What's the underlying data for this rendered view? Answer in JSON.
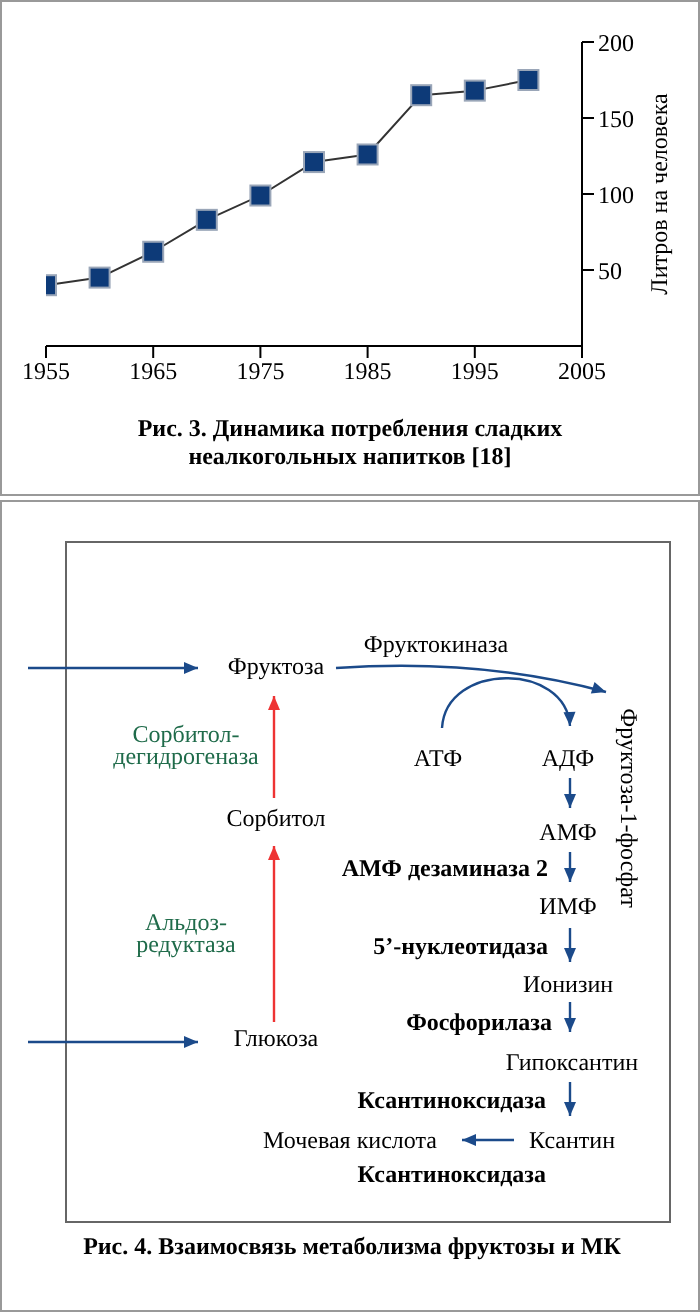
{
  "chart_data": [
    {
      "type": "line",
      "title": "Рис. 3. Динамика потребления сладких неалкогольных напитков [18]",
      "ylabel": "Литров на человека",
      "x": [
        1955,
        1960,
        1965,
        1970,
        1975,
        1980,
        1985,
        1990,
        1995,
        2000
      ],
      "series": [
        {
          "color": "#0d3a78",
          "values": [
            40,
            45,
            62,
            83,
            99,
            121,
            126,
            165,
            168,
            175
          ]
        }
      ],
      "xlim": [
        1955,
        2005
      ],
      "xticks": [
        1955,
        1965,
        1975,
        1985,
        1995,
        2005
      ],
      "ylim": [
        0,
        200
      ],
      "yticks": [
        50,
        100,
        150,
        200
      ],
      "marker": "square",
      "line_style": "solid"
    },
    {
      "type": "other",
      "title": "Рис. 4. Взаимосвязь метаболизма фруктозы и МК",
      "annotations": [
        "Фруктоза",
        "Фруктокиназа",
        "Фруктоза-1-фосфат",
        "Сорбитол-",
        "дегидрогеназа",
        "АТФ",
        "АДФ",
        "Сорбитол",
        "АМФ",
        "АМФ дезаминаза 2",
        "ИМФ",
        "Альдоз-",
        "редуктаза",
        "5’-нуклеотидаза",
        "Ионизин",
        "Фосфорилаза",
        "Глюкоза",
        "Гипоксантин",
        "Ксантиноксидаза",
        "Мочевая кислота",
        "Ксантин",
        "Ксантиноксидаза"
      ]
    }
  ]
}
